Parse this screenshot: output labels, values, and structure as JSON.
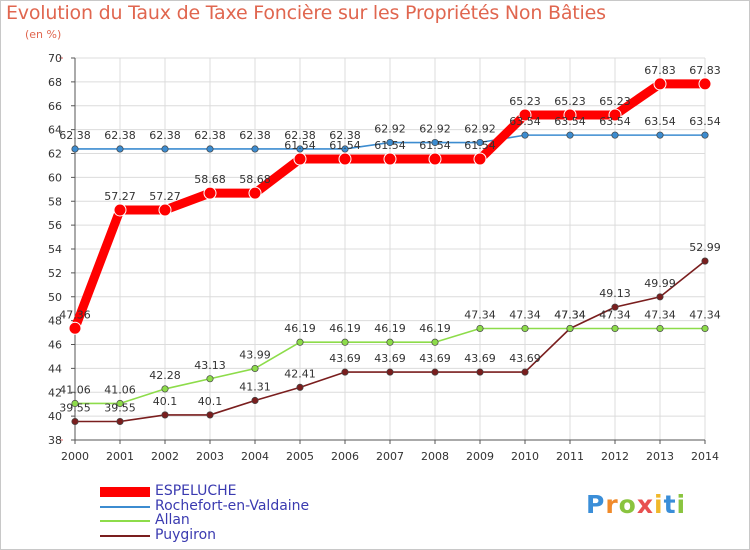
{
  "chart_data": {
    "type": "line",
    "title": "Evolution du Taux de Taxe Foncière sur les Propriétés Non Bâties",
    "subtitle": "(en %)",
    "x": [
      "2000",
      "2001",
      "2002",
      "2003",
      "2004",
      "2005",
      "2006",
      "2007",
      "2008",
      "2009",
      "2010",
      "2011",
      "2012",
      "2013",
      "2014"
    ],
    "ylim": [
      38,
      70
    ],
    "yticks": [
      38,
      40,
      42,
      44,
      46,
      48,
      50,
      52,
      54,
      56,
      58,
      60,
      62,
      64,
      66,
      68,
      70
    ],
    "grid": true,
    "series": [
      {
        "name": "ESPELUCHE",
        "color": "#ff0000",
        "values": [
          47.36,
          57.27,
          57.27,
          58.68,
          58.68,
          61.54,
          61.54,
          61.54,
          61.54,
          61.54,
          65.23,
          65.23,
          65.23,
          67.83,
          67.83
        ],
        "labels": [
          "47.36",
          "57.27",
          "57.27",
          "58.68",
          "58.68",
          "61.54",
          "61.54",
          "61.54",
          "61.54",
          "61.54",
          "65.23",
          "65.23",
          "65.23",
          "67.83",
          "67.83"
        ]
      },
      {
        "name": "Rochefort-en-Valdaine",
        "color": "#3c8cd0",
        "values": [
          62.38,
          62.38,
          62.38,
          62.38,
          62.38,
          62.38,
          62.38,
          62.92,
          62.92,
          62.92,
          63.54,
          63.54,
          63.54,
          63.54,
          63.54
        ],
        "labels": [
          "62.38",
          "62.38",
          "62.38",
          "62.38",
          "62.38",
          "62.38",
          "62.38",
          "62.92",
          "62.92",
          "62.92",
          "63.54",
          "63.54",
          "63.54",
          "63.54",
          "63.54"
        ]
      },
      {
        "name": "Allan",
        "color": "#8ddc4a",
        "values": [
          41.06,
          41.06,
          42.28,
          43.13,
          43.99,
          46.19,
          46.19,
          46.19,
          46.19,
          47.34,
          47.34,
          47.34,
          47.34,
          47.34,
          47.34
        ],
        "labels": [
          "41.06",
          "41.06",
          "42.28",
          "43.13",
          "43.99",
          "46.19",
          "46.19",
          "46.19",
          "46.19",
          "47.34",
          "47.34",
          "47.34",
          "47.34",
          "47.34",
          "47.34"
        ]
      },
      {
        "name": "Puygiron",
        "color": "#7a1e1e",
        "values": [
          39.55,
          39.55,
          40.1,
          40.1,
          41.31,
          42.41,
          43.69,
          43.69,
          43.69,
          43.69,
          43.69,
          47.34,
          49.13,
          49.99,
          52.99
        ],
        "labels": [
          "39.55",
          "39.55",
          "40.1",
          "40.1",
          "41.31",
          "42.41",
          "43.69",
          "43.69",
          "43.69",
          "43.69",
          "43.69",
          "47.34",
          "49.13",
          "49.99",
          "52.99"
        ]
      }
    ],
    "legend_position": "bottom-left"
  },
  "logo": {
    "letters": [
      "P",
      "r",
      "o",
      "x",
      "i",
      "t",
      "i"
    ],
    "colors": [
      "#3a8ed8",
      "#f08a2a",
      "#8ac43f",
      "#e85050",
      "#f0b82a",
      "#3a8ed8",
      "#8ac43f"
    ]
  }
}
